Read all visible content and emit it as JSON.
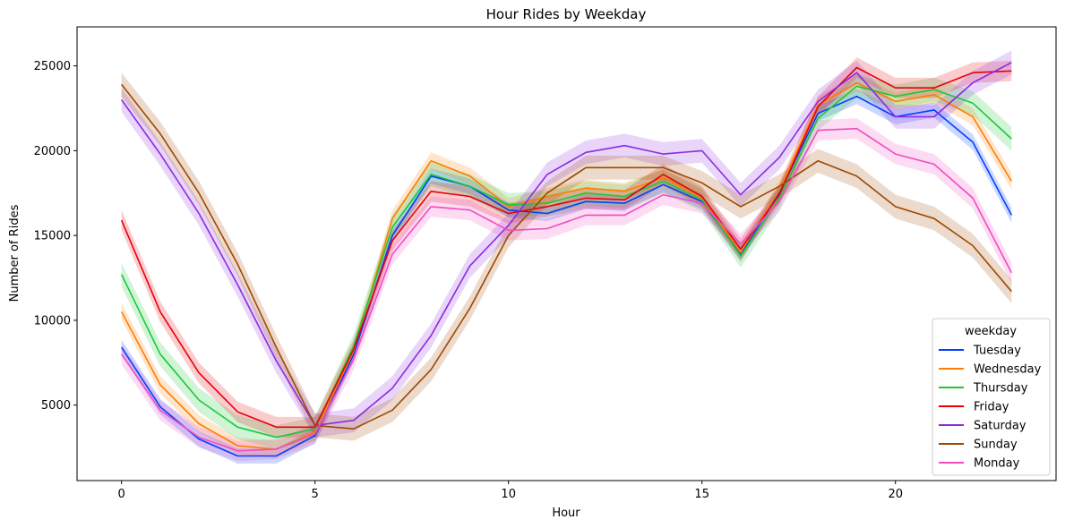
{
  "chart_data": {
    "type": "line",
    "title": "Hour Rides by Weekday",
    "xlabel": "Hour",
    "ylabel": "Number of Rides",
    "xlim": [
      -1.15,
      24.15
    ],
    "ylim": [
      550,
      27300
    ],
    "xticks": [
      0,
      5,
      10,
      15,
      20
    ],
    "yticks": [
      5000,
      10000,
      15000,
      20000,
      25000
    ],
    "x": [
      0,
      1,
      2,
      3,
      4,
      5,
      6,
      7,
      8,
      9,
      10,
      11,
      12,
      13,
      14,
      15,
      16,
      17,
      18,
      19,
      20,
      21,
      22,
      23
    ],
    "legend": {
      "title": "weekday",
      "position": "lower-right"
    },
    "series": [
      {
        "name": "Tuesday",
        "color": "#023eff",
        "band": 450,
        "values": [
          8400,
          4900,
          3000,
          2000,
          2000,
          3200,
          8000,
          15000,
          18500,
          17900,
          16500,
          16300,
          17000,
          16900,
          18000,
          17000,
          13900,
          17500,
          22200,
          23200,
          22000,
          22400,
          20500,
          16200
        ]
      },
      {
        "name": "Wednesday",
        "color": "#ff7c00",
        "band": 500,
        "values": [
          10500,
          6200,
          3900,
          2600,
          2400,
          3400,
          8200,
          16000,
          19400,
          18500,
          16700,
          17300,
          17800,
          17600,
          18400,
          17200,
          14000,
          17700,
          22700,
          24000,
          22900,
          23300,
          22000,
          18200
        ]
      },
      {
        "name": "Thursday",
        "color": "#1ac938",
        "band": 700,
        "values": [
          12700,
          8000,
          5300,
          3700,
          3100,
          3600,
          8500,
          15500,
          18600,
          17900,
          16800,
          16900,
          17500,
          17300,
          18200,
          17100,
          13800,
          17200,
          21900,
          23800,
          23200,
          23600,
          22800,
          20700
        ]
      },
      {
        "name": "Friday",
        "color": "#e8000b",
        "band": 600,
        "values": [
          15900,
          10500,
          6900,
          4600,
          3700,
          3700,
          8300,
          14700,
          17600,
          17300,
          16300,
          16700,
          17200,
          17100,
          18600,
          17300,
          14200,
          17400,
          22600,
          24900,
          23700,
          23700,
          24600,
          24700
        ]
      },
      {
        "name": "Saturday",
        "color": "#8b2be2",
        "band": 700,
        "values": [
          23000,
          19800,
          16300,
          12100,
          7600,
          3800,
          4100,
          6000,
          9100,
          13200,
          15600,
          18600,
          19900,
          20300,
          19800,
          20000,
          17400,
          19600,
          22900,
          24600,
          22000,
          22000,
          24000,
          25200
        ]
      },
      {
        "name": "Sunday",
        "color": "#9f4800",
        "band": 700,
        "values": [
          23900,
          21000,
          17500,
          13300,
          8400,
          3800,
          3600,
          4700,
          7100,
          10700,
          15000,
          17500,
          19000,
          19000,
          19000,
          18100,
          16700,
          17900,
          19400,
          18500,
          16700,
          16000,
          14400,
          11700
        ]
      },
      {
        "name": "Monday",
        "color": "#f14cc1",
        "band": 600,
        "values": [
          8000,
          4700,
          3100,
          2300,
          2400,
          3300,
          7700,
          13900,
          16700,
          16500,
          15300,
          15400,
          16200,
          16200,
          17400,
          16900,
          14500,
          17000,
          21200,
          21300,
          19800,
          19200,
          17200,
          12800
        ]
      }
    ]
  }
}
